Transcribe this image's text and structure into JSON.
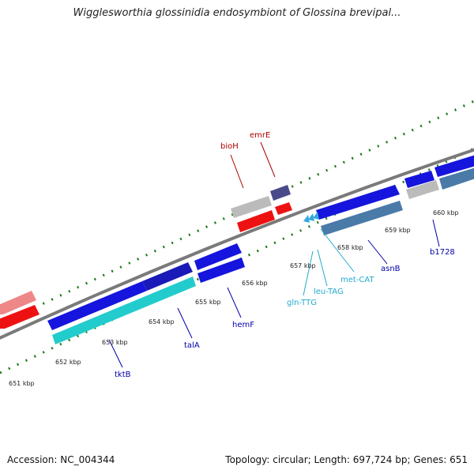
{
  "title": "Wigglesworthia glossinidia endosymbiont of Glossina brevipal...",
  "footer": {
    "accession": "Accession: NC_004344",
    "summary": "Topology: circular; Length: 697,724 bp; Genes: 651"
  },
  "colors": {
    "backbone": "#7a7a7a",
    "tick": "#1a7a1a",
    "forward_gene": "#1010dd",
    "reverse_gene": "#1aa0a0",
    "rna": "#33aadd",
    "red": "#ee1111",
    "gray": "#bbbbbb",
    "purple": "#4a4a8a",
    "steel": "#4a7aa8",
    "label_forward": "#0000aa",
    "label_reverse": "#aa0000",
    "label_rna": "#22aacc"
  },
  "kbp_labels": [
    "651 kbp",
    "652 kbp",
    "653 kbp",
    "654 kbp",
    "655 kbp",
    "656 kbp",
    "657 kbp",
    "658 kbp",
    "659 kbp",
    "660 kbp"
  ],
  "gene_labels": {
    "bioH": "bioH",
    "emrE": "emrE",
    "tktB": "tktB",
    "talA": "talA",
    "hemF": "hemF",
    "gln_TTG": "gln-TTG",
    "leu_TAG": "leu-TAG",
    "met_CAT": "met-CAT",
    "asnB": "asnB",
    "b1728": "b1728"
  }
}
